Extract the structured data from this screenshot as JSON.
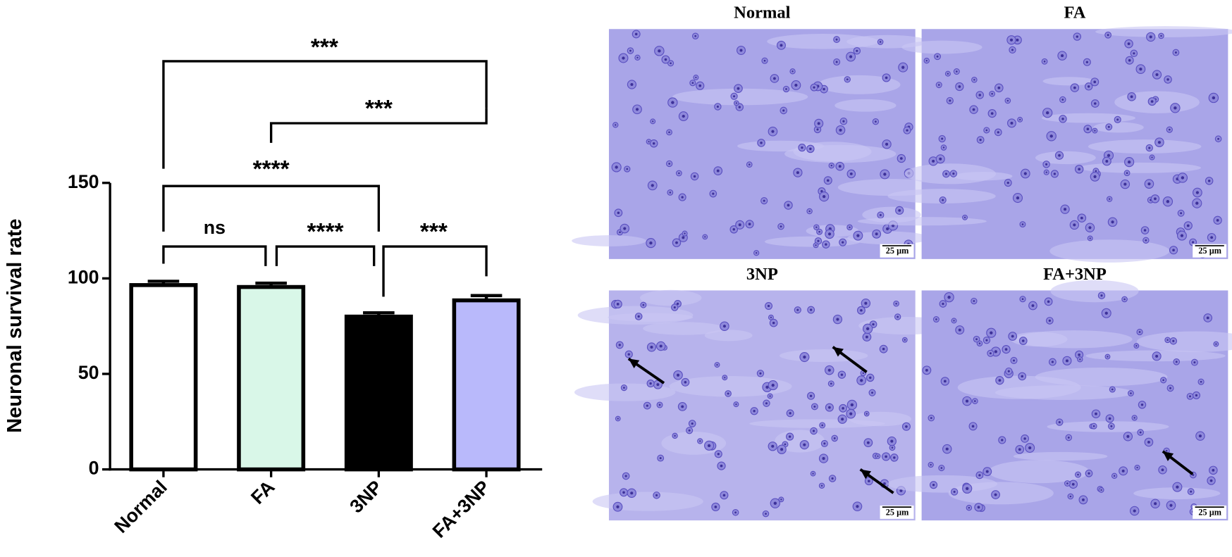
{
  "chart_data": {
    "type": "bar",
    "y_label": "Neuronal survival rate",
    "categories": [
      "Normal",
      "FA",
      "3NP",
      "FA+3NP"
    ],
    "values": [
      96.5,
      95.5,
      80,
      88.5
    ],
    "errors": [
      2,
      2,
      2,
      2.5
    ],
    "colors": [
      "#ffffff",
      "#d9f7e8",
      "#000000",
      "#b9b9fb"
    ],
    "ylim": [
      0,
      150
    ],
    "yticks": [
      0,
      50,
      100,
      150
    ],
    "significance": [
      "***",
      "***",
      "****",
      "ns",
      "****",
      "***"
    ]
  },
  "micrographs": {
    "panels": [
      {
        "title": "Normal",
        "scale_bar": "25 µm"
      },
      {
        "title": "FA",
        "scale_bar": "25 µm"
      },
      {
        "title": "3NP",
        "scale_bar": "25 µm"
      },
      {
        "title": "FA+3NP",
        "scale_bar": "25 µm"
      }
    ]
  }
}
